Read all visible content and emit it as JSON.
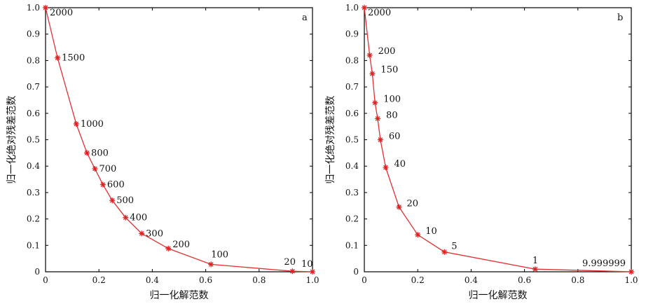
{
  "chart_data": [
    {
      "type": "line",
      "panel_tag": "a",
      "xlabel": "归一化解范数",
      "ylabel": "归一化绝对残差范数",
      "xlim": [
        0,
        1.0
      ],
      "ylim": [
        0,
        1.0
      ],
      "xticks": [
        "0",
        "0.2",
        "0.4",
        "0.6",
        "0.8",
        "1.0"
      ],
      "yticks": [
        "0",
        "0.1",
        "0.2",
        "0.3",
        "0.4",
        "0.5",
        "0.6",
        "0.7",
        "0.8",
        "0.9",
        "1.0"
      ],
      "points": [
        {
          "x": 0.0,
          "y": 1.0,
          "label": "2000"
        },
        {
          "x": 0.045,
          "y": 0.81,
          "label": "1500"
        },
        {
          "x": 0.115,
          "y": 0.56,
          "label": "1000"
        },
        {
          "x": 0.155,
          "y": 0.45,
          "label": "800"
        },
        {
          "x": 0.185,
          "y": 0.39,
          "label": "700"
        },
        {
          "x": 0.215,
          "y": 0.33,
          "label": "600"
        },
        {
          "x": 0.25,
          "y": 0.27,
          "label": "500"
        },
        {
          "x": 0.3,
          "y": 0.205,
          "label": "400"
        },
        {
          "x": 0.36,
          "y": 0.145,
          "label": "300"
        },
        {
          "x": 0.46,
          "y": 0.088,
          "label": "200"
        },
        {
          "x": 0.62,
          "y": 0.028,
          "label": "100"
        },
        {
          "x": 0.925,
          "y": 0.002,
          "label": "20"
        },
        {
          "x": 1.0,
          "y": 0.0,
          "label": "10"
        }
      ]
    },
    {
      "type": "line",
      "panel_tag": "b",
      "xlabel": "归一化解范数",
      "ylabel": "归一化绝对残差范数",
      "xlim": [
        0,
        1.0
      ],
      "ylim": [
        0,
        1.0
      ],
      "xticks": [
        "0",
        "0.2",
        "0.4",
        "0.6",
        "0.8",
        "1.0"
      ],
      "yticks": [
        "0",
        "0.1",
        "0.2",
        "0.3",
        "0.4",
        "0.5",
        "0.6",
        "0.7",
        "0.8",
        "0.9",
        "1.0"
      ],
      "points": [
        {
          "x": 0.0,
          "y": 1.0,
          "label": "2000"
        },
        {
          "x": 0.02,
          "y": 0.82,
          "label": "200"
        },
        {
          "x": 0.03,
          "y": 0.75,
          "label": "150"
        },
        {
          "x": 0.04,
          "y": 0.64,
          "label": "100"
        },
        {
          "x": 0.05,
          "y": 0.58,
          "label": "80"
        },
        {
          "x": 0.06,
          "y": 0.5,
          "label": "60"
        },
        {
          "x": 0.08,
          "y": 0.395,
          "label": "40"
        },
        {
          "x": 0.13,
          "y": 0.245,
          "label": "20"
        },
        {
          "x": 0.2,
          "y": 0.14,
          "label": "10"
        },
        {
          "x": 0.3,
          "y": 0.075,
          "label": "5"
        },
        {
          "x": 0.64,
          "y": 0.01,
          "label": "1"
        },
        {
          "x": 1.0,
          "y": 0.0,
          "label": "9.999999"
        }
      ]
    }
  ]
}
